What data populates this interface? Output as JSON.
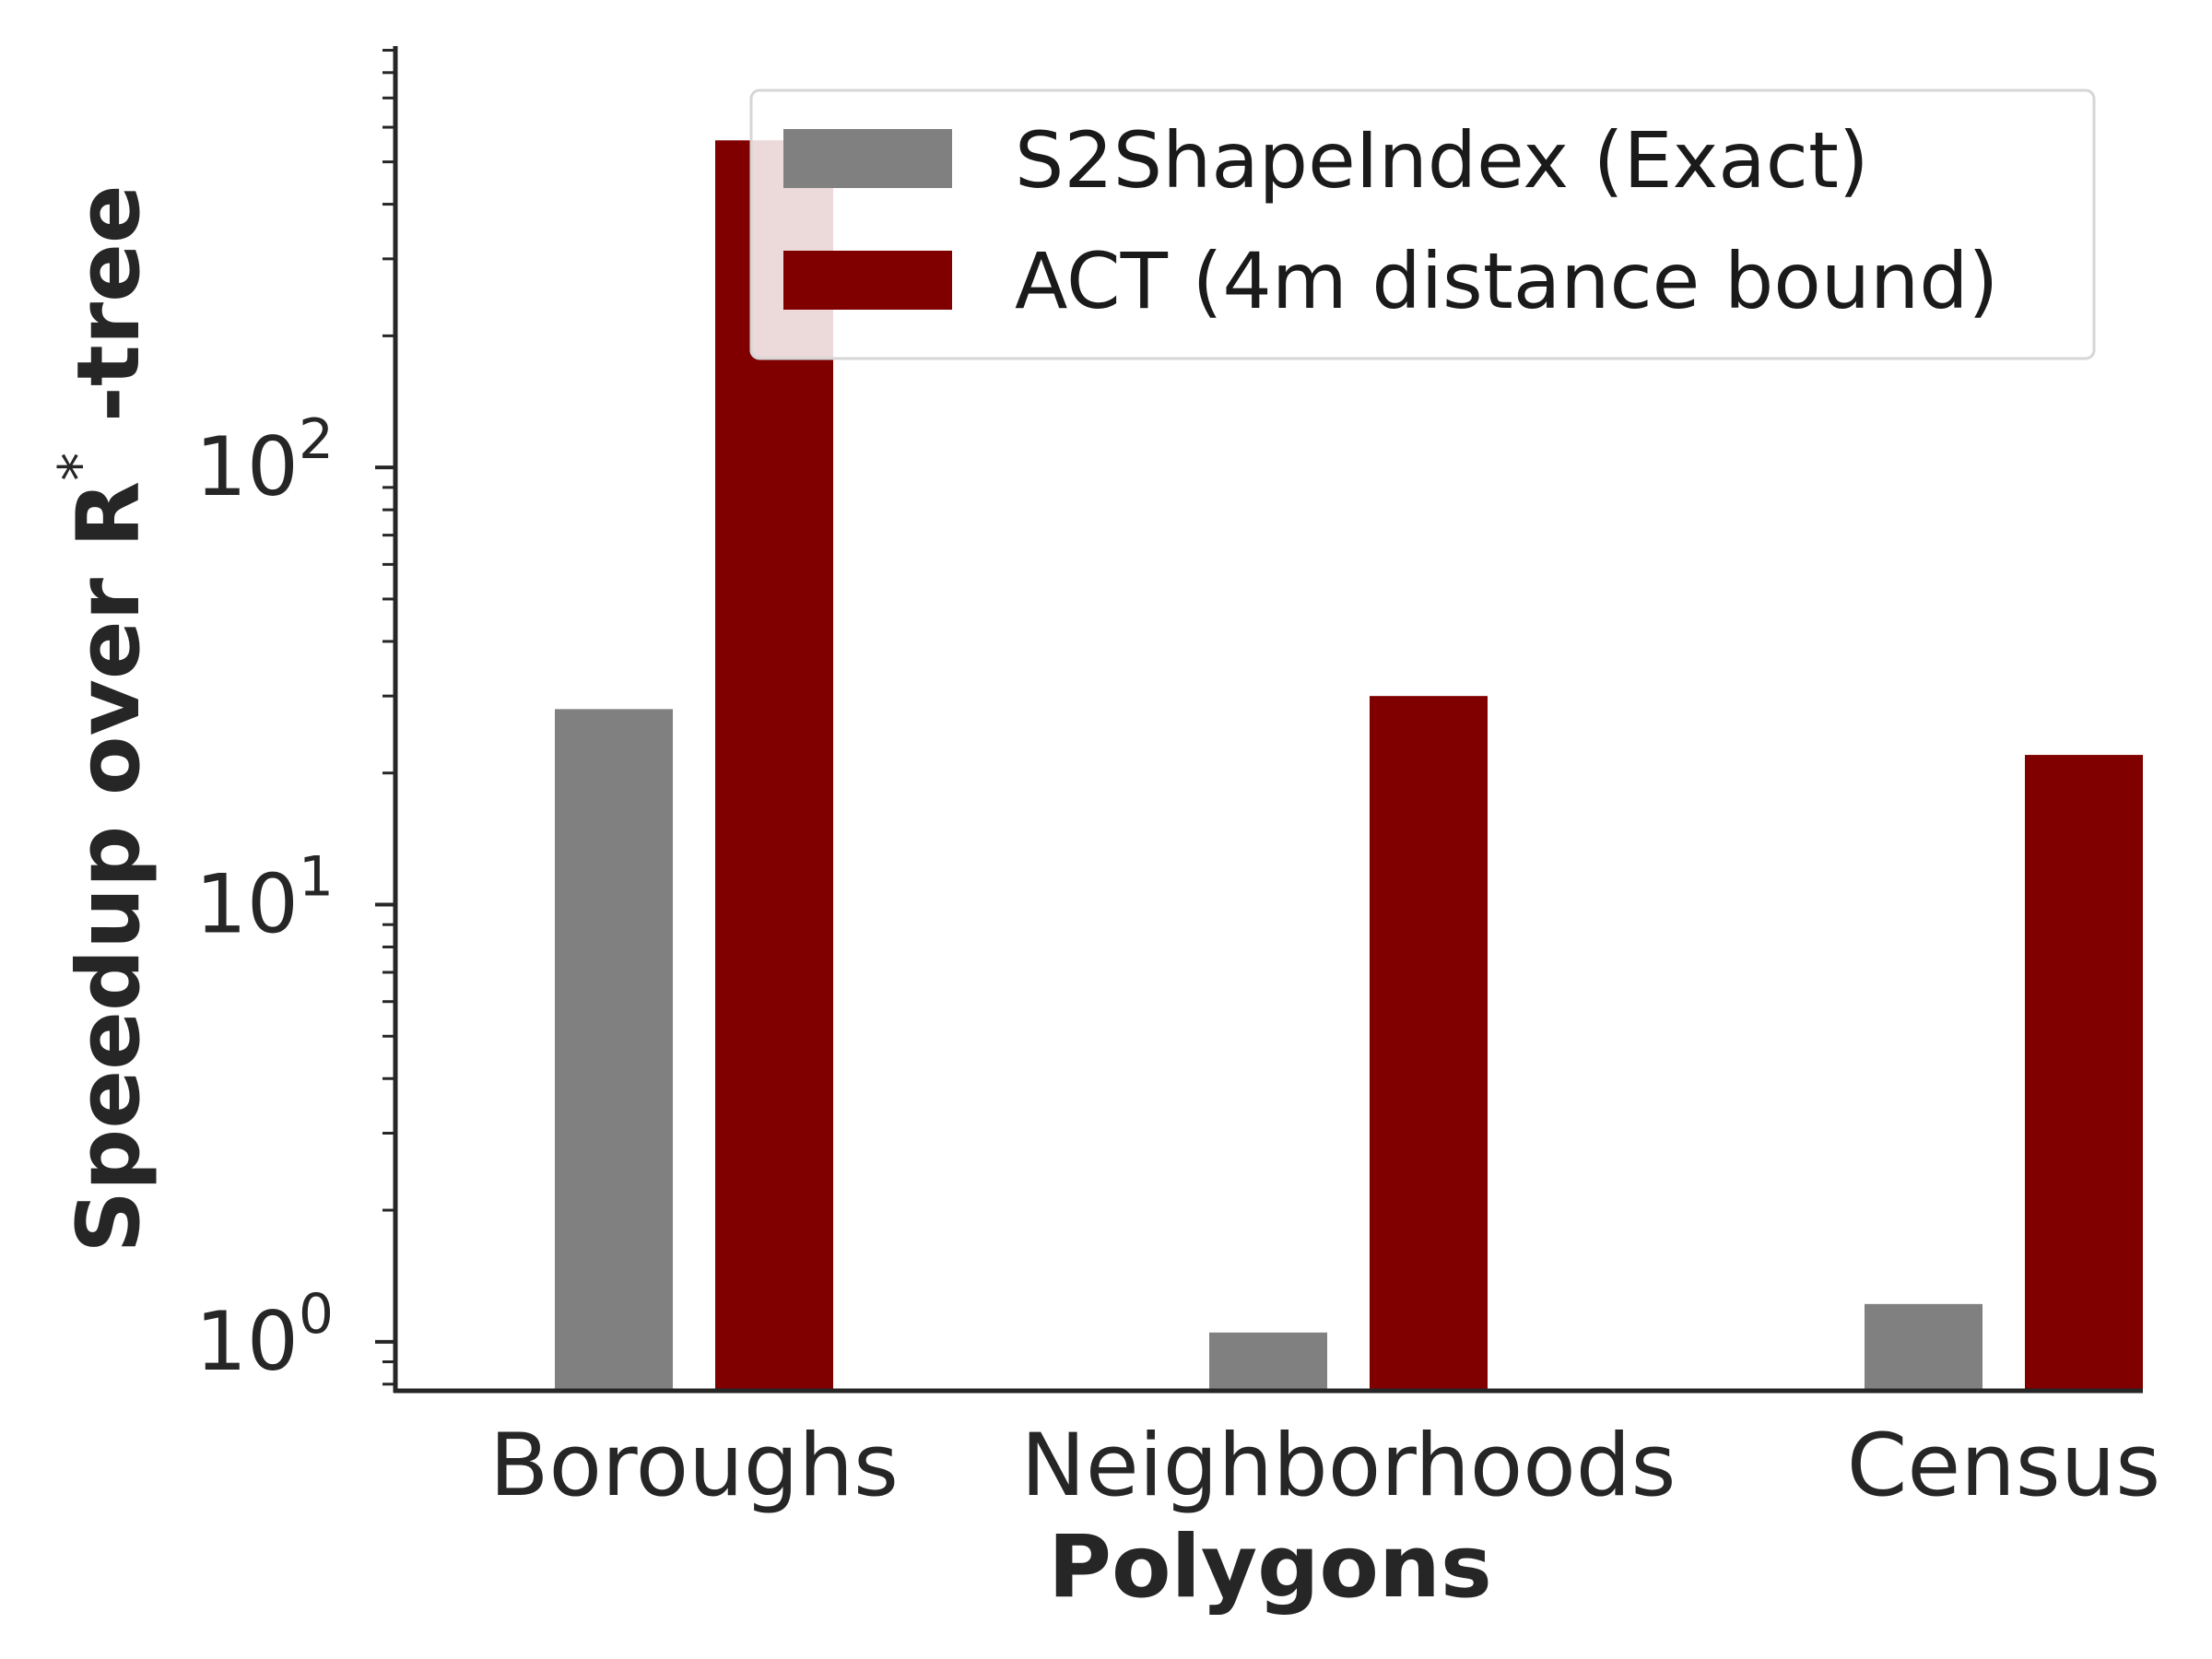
{
  "chart_data": {
    "type": "bar",
    "categories": [
      "Boroughs",
      "Neighborhoods",
      "Census"
    ],
    "series": [
      {
        "name": "S2ShapeIndex (Exact)",
        "color": "#808080",
        "values": [
          28,
          1.05,
          1.22
        ]
      },
      {
        "name": "ACT (4m distance bound)",
        "color": "#800000",
        "values": [
          560,
          30,
          22
        ]
      }
    ],
    "xlabel": "Polygons",
    "ylabel": "Speedup over R",
    "ylabel_superscript": "*",
    "ylabel_suffix": " -tree",
    "yscale": "log",
    "ylim": [
      0.78,
      920
    ],
    "yticks": [
      {
        "base": "10",
        "exp": "0",
        "value": 1
      },
      {
        "base": "10",
        "exp": "1",
        "value": 10
      },
      {
        "base": "10",
        "exp": "2",
        "value": 100
      }
    ],
    "grid": false,
    "legend_position": "top-right"
  }
}
